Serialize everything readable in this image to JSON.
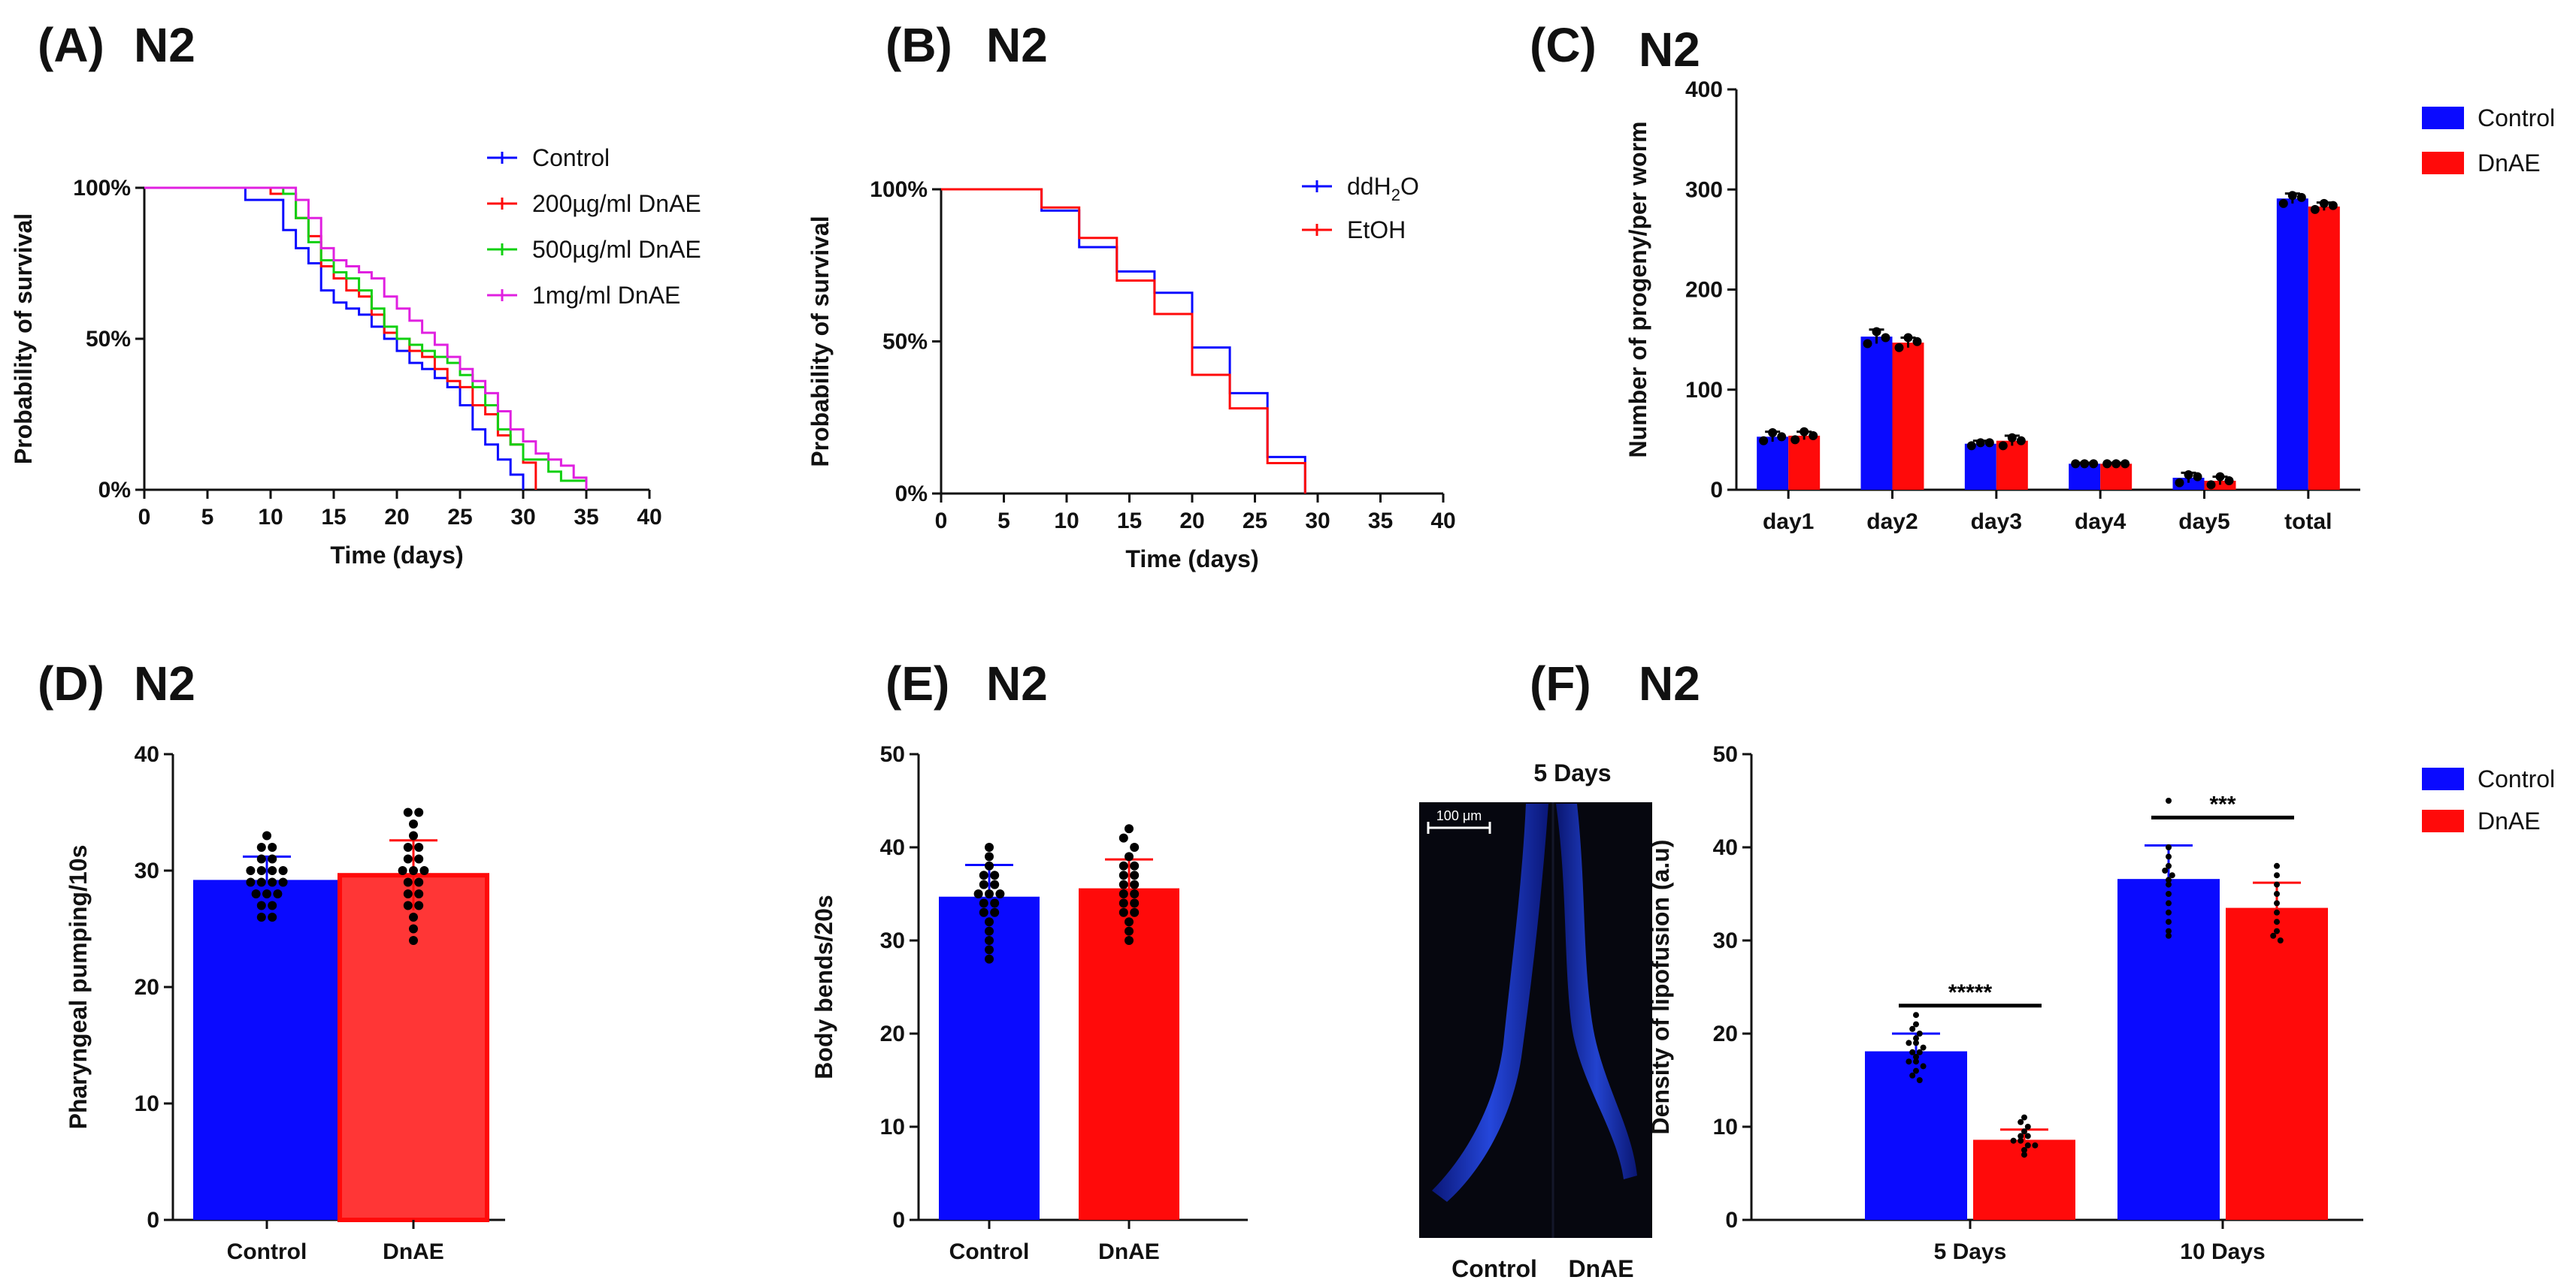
{
  "colors": {
    "control": "#0a0aff",
    "dnae": "#ff0a0a",
    "green": "#10d010",
    "magenta": "#e020e0",
    "axis": "#111111"
  },
  "panels": {
    "A": {
      "letter": "(A)",
      "strain": "N2"
    },
    "B": {
      "letter": "(B)",
      "strain": "N2"
    },
    "C": {
      "letter": "(C)",
      "strain": "N2"
    },
    "D": {
      "letter": "(D)",
      "strain": "N2"
    },
    "E": {
      "letter": "(E)",
      "strain": "N2"
    },
    "F": {
      "letter": "(F)",
      "strain": "N2"
    }
  },
  "image_panel": {
    "title": "5 Days",
    "scalebar": "100 μm",
    "label_left": "Control",
    "label_right": "DnAE"
  },
  "chart_data": [
    {
      "id": "A",
      "type": "line",
      "step": true,
      "xlabel": "Time (days)",
      "ylabel": "Probability of survival",
      "xlim": [
        0,
        40
      ],
      "ylim": [
        0,
        100
      ],
      "xticks": [
        "0",
        "5",
        "10",
        "15",
        "20",
        "25",
        "30",
        "35",
        "40"
      ],
      "yticks": [
        "0%",
        "50%",
        "100%"
      ],
      "series": [
        {
          "name": "Control",
          "color_key": "control",
          "x": [
            0,
            8,
            11,
            12,
            13,
            14,
            15,
            16,
            17,
            18,
            19,
            20,
            21,
            22,
            23,
            24,
            25,
            26,
            27,
            28,
            29,
            30
          ],
          "y": [
            100,
            96,
            86,
            80,
            75,
            66,
            62,
            60,
            58,
            54,
            50,
            46,
            42,
            40,
            37,
            34,
            28,
            20,
            15,
            10,
            5,
            0
          ]
        },
        {
          "name": "200µg/ml DnAE",
          "color_key": "dnae",
          "x": [
            0,
            10,
            12,
            13,
            14,
            15,
            16,
            17,
            18,
            19,
            20,
            21,
            22,
            23,
            24,
            25,
            26,
            27,
            28,
            29,
            30,
            31
          ],
          "y": [
            100,
            98,
            90,
            84,
            74,
            70,
            66,
            64,
            58,
            52,
            50,
            46,
            44,
            40,
            36,
            34,
            28,
            25,
            18,
            15,
            9,
            0
          ]
        },
        {
          "name": "500µg/ml DnAE",
          "color_key": "green",
          "x": [
            0,
            11,
            12,
            13,
            14,
            15,
            16,
            17,
            18,
            19,
            20,
            21,
            22,
            23,
            24,
            25,
            26,
            27,
            28,
            29,
            30,
            32,
            33,
            35
          ],
          "y": [
            100,
            98,
            90,
            82,
            76,
            72,
            70,
            66,
            60,
            54,
            50,
            48,
            46,
            44,
            42,
            38,
            34,
            28,
            20,
            15,
            10,
            6,
            3,
            0
          ]
        },
        {
          "name": "1mg/ml    DnAE",
          "color_key": "magenta",
          "x": [
            0,
            12,
            13,
            14,
            15,
            16,
            17,
            18,
            19,
            20,
            21,
            22,
            23,
            24,
            25,
            26,
            27,
            28,
            29,
            30,
            31,
            32,
            33,
            34,
            35
          ],
          "y": [
            100,
            96,
            90,
            80,
            76,
            74,
            72,
            70,
            64,
            60,
            56,
            52,
            48,
            44,
            40,
            36,
            32,
            26,
            20,
            16,
            12,
            10,
            8,
            4,
            0
          ]
        }
      ]
    },
    {
      "id": "B",
      "type": "line",
      "step": true,
      "xlabel": "Time  (days)",
      "ylabel": "Probability of survival",
      "xlim": [
        0,
        40
      ],
      "ylim": [
        0,
        100
      ],
      "xticks": [
        "0",
        "5",
        "10",
        "15",
        "20",
        "25",
        "30",
        "35",
        "40"
      ],
      "yticks": [
        "0%",
        "50%",
        "100%"
      ],
      "series": [
        {
          "name": "ddH",
          "subscript": "2",
          "suffix": "O",
          "color_key": "control",
          "x": [
            0,
            8,
            11,
            14,
            17,
            20,
            23,
            26,
            29
          ],
          "y": [
            100,
            93,
            81,
            73,
            66,
            48,
            33,
            12,
            0
          ]
        },
        {
          "name": "EtOH",
          "color_key": "dnae",
          "x": [
            0,
            8,
            11,
            14,
            17,
            20,
            23,
            26,
            29
          ],
          "y": [
            100,
            94,
            84,
            70,
            59,
            39,
            28,
            10,
            0
          ]
        }
      ]
    },
    {
      "id": "C",
      "type": "bar",
      "xlabel": "",
      "ylabel": "Number of progeny/per worm",
      "ylim": [
        0,
        400
      ],
      "yticks": [
        "0",
        "100",
        "200",
        "300",
        "400"
      ],
      "categories": [
        "day1",
        "day2",
        "day3",
        "day4",
        "day5",
        "total"
      ],
      "series": [
        {
          "name": "Control",
          "color_key": "control",
          "values": [
            53,
            153,
            46,
            26,
            12,
            291
          ],
          "err": [
            5,
            7,
            3,
            1,
            5,
            5
          ],
          "points": [
            [
              49,
              57,
              53
            ],
            [
              146,
              158,
              152
            ],
            [
              44,
              47,
              47
            ],
            [
              26,
              26,
              26
            ],
            [
              7,
              15,
              13
            ],
            [
              286,
              294,
              292
            ]
          ]
        },
        {
          "name": "DnAE",
          "color_key": "dnae",
          "values": [
            54,
            147,
            49,
            26,
            9,
            283
          ],
          "err": [
            4,
            5,
            5,
            1,
            4,
            4
          ],
          "points": [
            [
              50,
              58,
              54
            ],
            [
              142,
              152,
              148
            ],
            [
              44,
              52,
              49
            ],
            [
              26,
              26,
              26
            ],
            [
              5,
              13,
              9
            ],
            [
              280,
              286,
              284
            ]
          ]
        }
      ]
    },
    {
      "id": "D",
      "type": "bar",
      "xlabel": "",
      "ylabel": "Pharyngeal pumping/10s",
      "ylim": [
        0,
        40
      ],
      "yticks": [
        "0",
        "10",
        "20",
        "30",
        "40"
      ],
      "categories": [
        "Control",
        "DnAE"
      ],
      "series": [
        {
          "name": "Pumping",
          "values": [
            29.2,
            29.6
          ],
          "err": [
            2.0,
            3.0
          ],
          "color_keys": [
            "control",
            "dnae"
          ],
          "points": [
            [
              33,
              32,
              32,
              31,
              31,
              30,
              30,
              30,
              30,
              29,
              29,
              29,
              29,
              28,
              28,
              28,
              27,
              27,
              26,
              26
            ],
            [
              35,
              35,
              34,
              33,
              32,
              32,
              31,
              31,
              30,
              30,
              30,
              29,
              29,
              28,
              28,
              27,
              27,
              26,
              25,
              24
            ]
          ]
        }
      ]
    },
    {
      "id": "E",
      "type": "bar",
      "xlabel": "",
      "ylabel": "Body bends/20s",
      "ylim": [
        0,
        50
      ],
      "yticks": [
        "0",
        "10",
        "20",
        "30",
        "40",
        "50"
      ],
      "categories": [
        "Control",
        "DnAE"
      ],
      "series": [
        {
          "name": "Bends",
          "values": [
            34.7,
            35.6
          ],
          "err": [
            3.4,
            3.1
          ],
          "color_keys": [
            "control",
            "dnae"
          ],
          "points": [
            [
              40,
              39,
              38,
              37,
              37,
              36,
              36,
              35,
              35,
              35,
              34,
              34,
              33,
              33,
              32,
              31,
              30,
              29,
              28
            ],
            [
              42,
              41,
              40,
              39,
              38,
              38,
              37,
              37,
              36,
              36,
              35,
              35,
              34,
              34,
              33,
              33,
              32,
              31,
              30
            ]
          ]
        }
      ]
    },
    {
      "id": "F",
      "type": "bar",
      "xlabel": "",
      "ylabel": "Density of lipofusion (a.u)",
      "ylim": [
        0,
        50
      ],
      "yticks": [
        "0",
        "10",
        "20",
        "30",
        "40",
        "50"
      ],
      "categories": [
        "5 Days",
        "10 Days"
      ],
      "series": [
        {
          "name": "Control",
          "color_key": "control",
          "values": [
            18.1,
            36.6
          ],
          "err": [
            1.9,
            3.6
          ],
          "points": [
            [
              22,
              21,
              20.5,
              20,
              19.5,
              19,
              19,
              18.5,
              18,
              18,
              17.5,
              17,
              17,
              16.5,
              16,
              15.5,
              15
            ],
            [
              45,
              40,
              39,
              38,
              37.5,
              37,
              36.5,
              36,
              35,
              34,
              33,
              32,
              31,
              30.5
            ]
          ]
        },
        {
          "name": "DnAE",
          "color_key": "dnae",
          "values": [
            8.6,
            33.5
          ],
          "err": [
            1.1,
            2.7
          ],
          "points": [
            [
              11,
              10.5,
              10,
              9.5,
              9,
              9,
              8.5,
              8.5,
              8,
              8,
              7.5,
              7
            ],
            [
              38,
              37,
              36,
              35,
              34,
              33,
              32,
              31,
              30.5,
              30
            ]
          ]
        }
      ],
      "significance": [
        {
          "category": "5 Days",
          "label": "*****"
        },
        {
          "category": "10 Days",
          "label": "***"
        }
      ]
    }
  ]
}
